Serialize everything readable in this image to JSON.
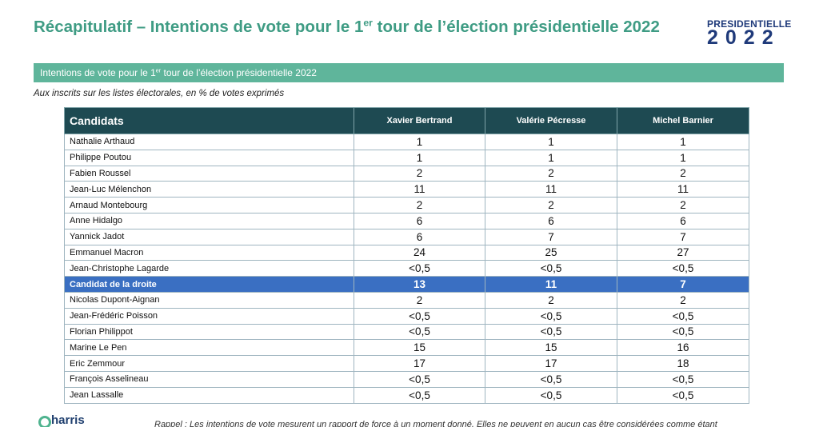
{
  "header": {
    "title": [
      "Récapitulatif – Intentions de vote pour le 1",
      "er",
      " tour de l’élection présidentielle 2022"
    ],
    "logo": {
      "top": "PRESIDENTIELLE",
      "bottom": "2022"
    }
  },
  "banner": [
    "Intentions de vote pour le 1",
    "er",
    " tour de l’élection présidentielle 2022"
  ],
  "subtitle": "Aux inscrits sur les listes électorales, en % de votes exprimés",
  "table": {
    "columns": [
      "Candidats",
      "Xavier Bertrand",
      "Valérie Pécresse",
      "Michel Barnier"
    ],
    "highlight_row": 9,
    "rows": [
      [
        "Nathalie Arthaud",
        1,
        1,
        1
      ],
      [
        "Philippe Poutou",
        1,
        1,
        1
      ],
      [
        "Fabien Roussel",
        2,
        2,
        2
      ],
      [
        "Jean-Luc Mélenchon",
        11,
        11,
        11
      ],
      [
        "Arnaud Montebourg",
        2,
        2,
        2
      ],
      [
        "Anne Hidalgo",
        6,
        6,
        6
      ],
      [
        "Yannick Jadot",
        6,
        7,
        7
      ],
      [
        "Emmanuel Macron",
        24,
        25,
        27
      ],
      [
        "Jean-Christophe Lagarde",
        "<0,5",
        "<0,5",
        "<0,5"
      ],
      [
        "Candidat de la droite",
        13,
        11,
        7
      ],
      [
        "Nicolas Dupont-Aignan",
        2,
        2,
        2
      ],
      [
        "Jean-Frédéric Poisson",
        "<0,5",
        "<0,5",
        "<0,5"
      ],
      [
        "Florian Philippot",
        "<0,5",
        "<0,5",
        "<0,5"
      ],
      [
        "Marine Le Pen",
        15,
        15,
        16
      ],
      [
        "Eric Zemmour",
        17,
        17,
        18
      ],
      [
        "François Asselineau",
        "<0,5",
        "<0,5",
        "<0,5"
      ],
      [
        "Jean Lassalle",
        "<0,5",
        "<0,5",
        "<0,5"
      ]
    ]
  },
  "footer": {
    "logo": "harris",
    "note": "Rappel : Les intentions de vote mesurent un rapport de force à un moment donné. Elles ne peuvent en aucun cas être considérées comme étant"
  }
}
